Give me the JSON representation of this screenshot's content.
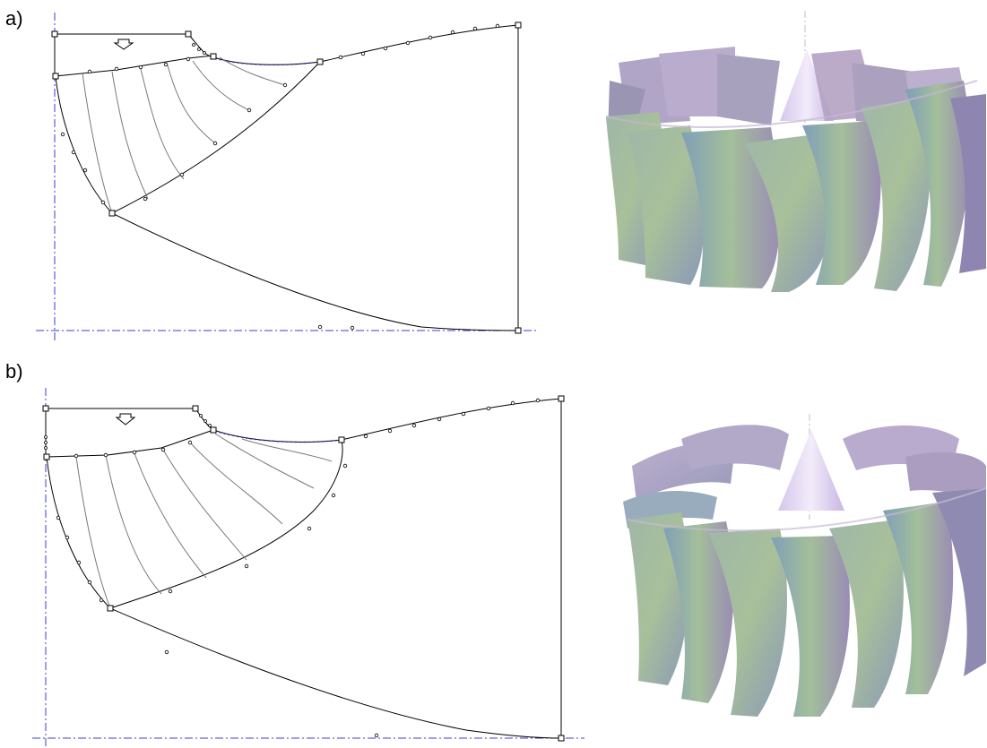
{
  "panels": [
    {
      "label": "a)"
    },
    {
      "label": "b)"
    }
  ],
  "colors": {
    "axis": "#3b3bd6",
    "line": "#000000",
    "blade_line": "#7a7a7a",
    "shroud_highlight": "#2a2aa8",
    "blade_green": "#8fb08f",
    "blade_purple": "#a592b8",
    "blade_blue": "#8aa3c2",
    "cone": "#e6d9f3"
  },
  "icons": {
    "flow_arrow": "down-arrow-icon"
  }
}
